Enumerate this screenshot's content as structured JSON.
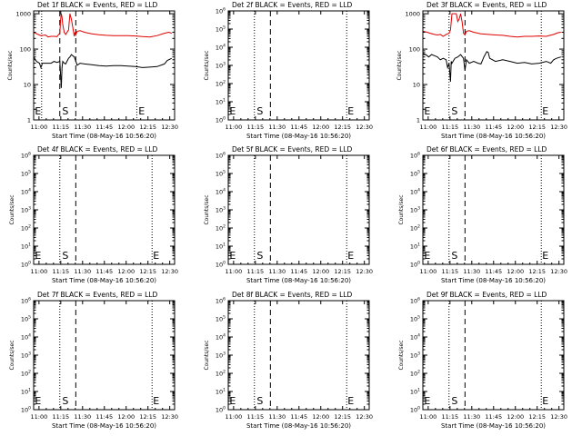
{
  "figure": {
    "xlabel": "Start Time (08-May-16 10:56:20)",
    "ylabel": "Counts/sec",
    "x_tick_labels": [
      "11:00",
      "11:15",
      "11:30",
      "11:45",
      "12:00",
      "12:15",
      "12:30"
    ],
    "colors": {
      "events": "#000000",
      "lld": "#e00000"
    },
    "markers": {
      "start": "S",
      "end": "E"
    }
  },
  "chart_data": [
    {
      "type": "line",
      "title": "Det 1f BLACK = Events, RED = LLD",
      "yscale": "log",
      "y_tick_labels": [
        "1",
        "10",
        "100",
        "1000"
      ],
      "ylim": [
        1,
        1200
      ],
      "xlim_minutes": [
        0,
        97
      ],
      "vlines": {
        "dotted": [
          5.5,
          71
        ],
        "dashed": [
          18,
          29
        ]
      },
      "markers": [
        {
          "text": "E",
          "x": 0.2
        },
        {
          "text": "S",
          "x": 19
        },
        {
          "text": "E",
          "x": 71.5
        }
      ],
      "series": [
        {
          "name": "LLD",
          "color": "#e00000",
          "x": [
            0,
            3,
            5,
            8,
            10,
            12,
            14,
            16,
            18,
            18.5,
            19,
            19.5,
            20,
            21,
            22,
            24,
            25,
            26,
            28,
            28.5,
            29,
            30,
            32,
            35,
            40,
            45,
            50,
            55,
            60,
            65,
            70,
            75,
            80,
            85,
            90,
            93,
            95
          ],
          "y": [
            300,
            260,
            240,
            250,
            220,
            230,
            230,
            225,
            280,
            650,
            1000,
            800,
            500,
            300,
            260,
            350,
            1000,
            700,
            230,
            300,
            250,
            320,
            330,
            300,
            270,
            255,
            245,
            240,
            240,
            240,
            235,
            225,
            220,
            240,
            280,
            300,
            280
          ]
        },
        {
          "name": "Events",
          "color": "#000000",
          "x": [
            0,
            2,
            4,
            5,
            6,
            8,
            10,
            12,
            14,
            16,
            18,
            19,
            19.5,
            20,
            21,
            22,
            24,
            25,
            26,
            28,
            30,
            32,
            35,
            40,
            45,
            50,
            55,
            60,
            65,
            70,
            75,
            80,
            85,
            90,
            92,
            95
          ],
          "y": [
            60,
            45,
            40,
            30,
            40,
            40,
            40,
            40,
            45,
            42,
            45,
            8,
            30,
            45,
            40,
            38,
            55,
            60,
            70,
            60,
            35,
            40,
            38,
            36,
            34,
            33,
            34,
            34,
            33,
            32,
            30,
            31,
            32,
            38,
            48,
            55
          ]
        }
      ]
    },
    {
      "type": "line",
      "title": "Det 2f BLACK = Events, RED = LLD",
      "yscale": "log",
      "y_tick_labels": [
        "10^0",
        "10^1",
        "10^2",
        "10^3",
        "10^4",
        "10^5",
        "10^6"
      ],
      "ylim": [
        1,
        1000000
      ],
      "xlim_minutes": [
        0,
        97
      ],
      "vlines": {
        "dotted": [
          18,
          81.5
        ],
        "dashed": [
          29
        ]
      },
      "markers": [
        {
          "text": "E",
          "x": 0.2
        },
        {
          "text": "S",
          "x": 19
        },
        {
          "text": "E",
          "x": 81.5
        }
      ],
      "series": []
    },
    {
      "type": "line",
      "title": "Det 3f BLACK = Events, RED = LLD",
      "yscale": "log",
      "y_tick_labels": [
        "1",
        "10",
        "100",
        "1000"
      ],
      "ylim": [
        1,
        1200
      ],
      "xlim_minutes": [
        0,
        97
      ],
      "vlines": {
        "dotted": [
          18,
          81.5
        ],
        "dashed": [
          29
        ]
      },
      "markers": [
        {
          "text": "E",
          "x": 0.2
        },
        {
          "text": "S",
          "x": 19
        },
        {
          "text": "E",
          "x": 81.5
        }
      ],
      "series": [
        {
          "name": "LLD",
          "color": "#e00000",
          "x": [
            0,
            3,
            5,
            8,
            10,
            12,
            14,
            16,
            18,
            19,
            20,
            21,
            22,
            23,
            24,
            25,
            26,
            27,
            28,
            29,
            30,
            32,
            35,
            40,
            45,
            50,
            55,
            60,
            65,
            70,
            75,
            80,
            85,
            90,
            93,
            95
          ],
          "y": [
            320,
            300,
            280,
            260,
            250,
            260,
            230,
            260,
            280,
            350,
            1000,
            1000,
            1000,
            1000,
            600,
            700,
            1000,
            600,
            280,
            250,
            320,
            330,
            300,
            270,
            260,
            250,
            245,
            230,
            220,
            230,
            230,
            235,
            230,
            260,
            290,
            300
          ]
        },
        {
          "name": "Events",
          "color": "#000000",
          "x": [
            0,
            2,
            4,
            6,
            8,
            10,
            12,
            14,
            16,
            17,
            18,
            19,
            19.5,
            20,
            22,
            24,
            26,
            28,
            29,
            30,
            32,
            35,
            38,
            40,
            42,
            44,
            45,
            46,
            50,
            55,
            60,
            65,
            70,
            75,
            80,
            85,
            88,
            90,
            92,
            95
          ],
          "y": [
            75,
            70,
            60,
            70,
            65,
            60,
            50,
            55,
            50,
            30,
            40,
            12,
            45,
            40,
            55,
            60,
            70,
            55,
            25,
            50,
            40,
            45,
            40,
            38,
            60,
            85,
            80,
            55,
            45,
            50,
            45,
            40,
            42,
            38,
            40,
            45,
            40,
            50,
            55,
            60
          ]
        }
      ]
    },
    {
      "type": "line",
      "title": "Det 4f BLACK = Events, RED = LLD",
      "yscale": "log",
      "y_tick_labels": [
        "10^0",
        "10^1",
        "10^2",
        "10^3",
        "10^4",
        "10^5",
        "10^6"
      ],
      "ylim": [
        1,
        1000000
      ],
      "xlim_minutes": [
        0,
        97
      ],
      "vlines": {
        "dotted": [
          18,
          81.5
        ],
        "dashed": [
          29
        ]
      },
      "markers": [
        {
          "text": "E",
          "x": 0.2
        },
        {
          "text": "S",
          "x": 19
        },
        {
          "text": "E",
          "x": 81.5
        }
      ],
      "series": []
    },
    {
      "type": "line",
      "title": "Det 5f BLACK = Events, RED = LLD",
      "yscale": "log",
      "y_tick_labels": [
        "10^0",
        "10^1",
        "10^2",
        "10^3",
        "10^4",
        "10^5",
        "10^6"
      ],
      "ylim": [
        1,
        1000000
      ],
      "xlim_minutes": [
        0,
        97
      ],
      "vlines": {
        "dotted": [
          18,
          81.5
        ],
        "dashed": [
          29
        ]
      },
      "markers": [
        {
          "text": "E",
          "x": 0.2
        },
        {
          "text": "S",
          "x": 19
        },
        {
          "text": "E",
          "x": 81.5
        }
      ],
      "series": []
    },
    {
      "type": "line",
      "title": "Det 6f BLACK = Events, RED = LLD",
      "yscale": "log",
      "y_tick_labels": [
        "10^0",
        "10^1",
        "10^2",
        "10^3",
        "10^4",
        "10^5",
        "10^6"
      ],
      "ylim": [
        1,
        1000000
      ],
      "xlim_minutes": [
        0,
        97
      ],
      "vlines": {
        "dotted": [
          18,
          81.5
        ],
        "dashed": [
          29
        ]
      },
      "markers": [
        {
          "text": "E",
          "x": 0.2
        },
        {
          "text": "S",
          "x": 19
        },
        {
          "text": "E",
          "x": 81.5
        }
      ],
      "series": []
    },
    {
      "type": "line",
      "title": "Det 7f BLACK = Events, RED = LLD",
      "yscale": "log",
      "y_tick_labels": [
        "10^0",
        "10^1",
        "10^2",
        "10^3",
        "10^4",
        "10^5",
        "10^6"
      ],
      "ylim": [
        1,
        1000000
      ],
      "xlim_minutes": [
        0,
        97
      ],
      "vlines": {
        "dotted": [
          18,
          81.5
        ],
        "dashed": [
          29
        ]
      },
      "markers": [
        {
          "text": "E",
          "x": 0.2
        },
        {
          "text": "S",
          "x": 19
        },
        {
          "text": "E",
          "x": 81.5
        }
      ],
      "series": []
    },
    {
      "type": "line",
      "title": "Det 8f BLACK = Events, RED = LLD",
      "yscale": "log",
      "y_tick_labels": [
        "10^0",
        "10^1",
        "10^2",
        "10^3",
        "10^4",
        "10^5",
        "10^6"
      ],
      "ylim": [
        1,
        1000000
      ],
      "xlim_minutes": [
        0,
        97
      ],
      "vlines": {
        "dotted": [
          18,
          81.5
        ],
        "dashed": [
          29
        ]
      },
      "markers": [
        {
          "text": "E",
          "x": 0.2
        },
        {
          "text": "S",
          "x": 19
        },
        {
          "text": "E",
          "x": 81.5
        }
      ],
      "series": []
    },
    {
      "type": "line",
      "title": "Det 9f BLACK = Events, RED = LLD",
      "yscale": "log",
      "y_tick_labels": [
        "10^0",
        "10^1",
        "10^2",
        "10^3",
        "10^4",
        "10^5",
        "10^6"
      ],
      "ylim": [
        1,
        1000000
      ],
      "xlim_minutes": [
        0,
        97
      ],
      "vlines": {
        "dotted": [
          18,
          81.5
        ],
        "dashed": [
          29
        ]
      },
      "markers": [
        {
          "text": "E",
          "x": 0.2
        },
        {
          "text": "S",
          "x": 19
        },
        {
          "text": "E",
          "x": 81.5
        }
      ],
      "series": []
    }
  ]
}
